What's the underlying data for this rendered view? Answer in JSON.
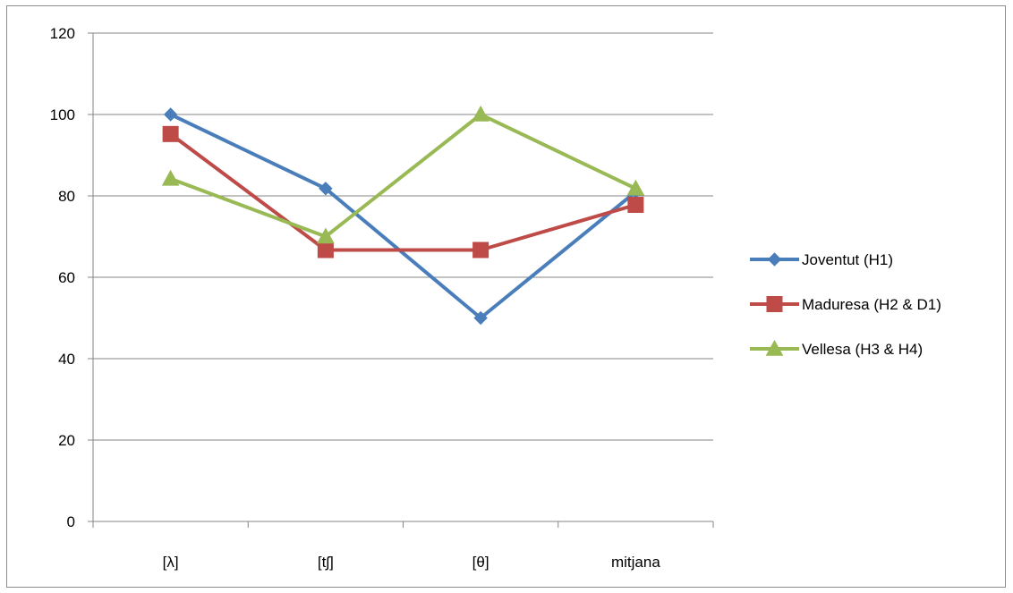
{
  "chart_data": {
    "type": "line",
    "title": "",
    "xlabel": "",
    "ylabel": "",
    "categories": [
      "[λ]",
      "[tʃ]",
      "[θ]",
      "mitjana"
    ],
    "ylim": [
      0,
      120
    ],
    "yticks": [
      "0",
      "20",
      "40",
      "60",
      "80",
      "100",
      "120"
    ],
    "grid": true,
    "legend_position": "right",
    "series": [
      {
        "name": "Joventut (H1)",
        "values": [
          100,
          81.8,
          50,
          81
        ],
        "color": "#4a7ebb",
        "marker": "diamond"
      },
      {
        "name": "Maduresa (H2 & D1)",
        "values": [
          95.2,
          66.7,
          66.7,
          77.8
        ],
        "color": "#be4b48",
        "marker": "square"
      },
      {
        "name": "Vellesa (H3 & H4)",
        "values": [
          84.2,
          70,
          100,
          81.8
        ],
        "color": "#98b954",
        "marker": "triangle"
      }
    ]
  }
}
